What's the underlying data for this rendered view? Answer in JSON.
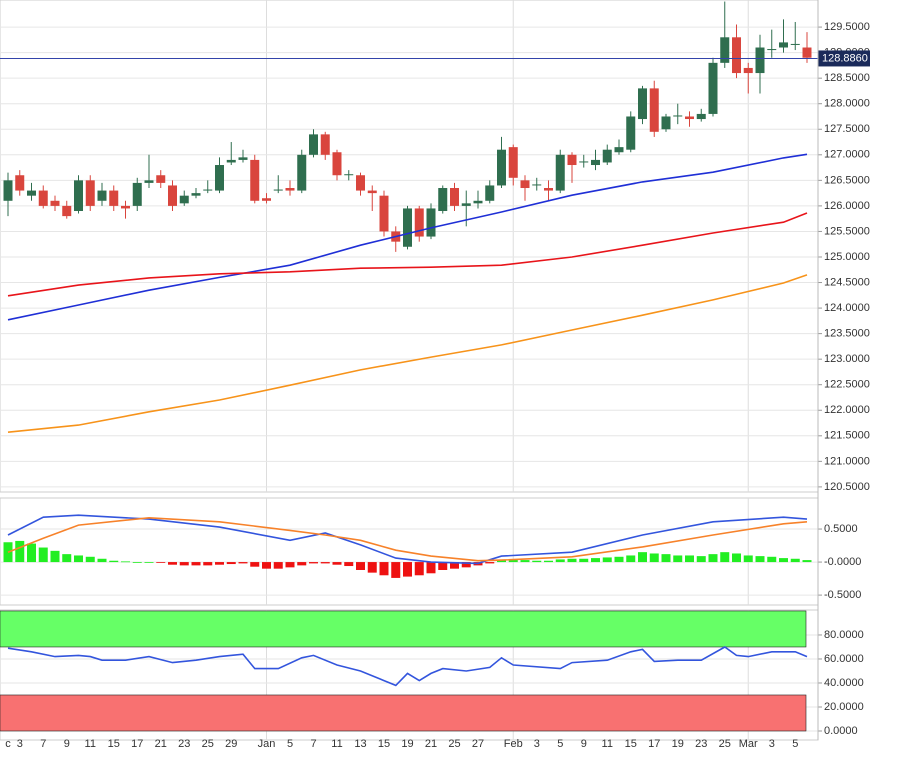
{
  "chart_data": [
    {
      "type": "candlestick",
      "categories": [
        "c",
        "3",
        null,
        "7",
        null,
        "9",
        null,
        "11",
        null,
        "15",
        null,
        "17",
        null,
        "21",
        null,
        "23",
        null,
        "25",
        null,
        "29",
        null,
        null,
        "Jan",
        null,
        "5",
        null,
        "7",
        null,
        "11",
        null,
        "13",
        null,
        "15",
        null,
        "19",
        null,
        "21",
        null,
        "25",
        null,
        "27",
        null,
        null,
        "Feb",
        null,
        "3",
        null,
        "5",
        null,
        "9",
        null,
        "11",
        null,
        "15",
        null,
        "17",
        null,
        "19",
        null,
        "23",
        null,
        "25",
        null,
        "Mar",
        null,
        "3",
        null,
        "5",
        null
      ],
      "open": [
        126.1,
        126.6,
        126.2,
        126.3,
        126.1,
        126.0,
        125.9,
        126.5,
        126.1,
        126.3,
        126.0,
        126.0,
        126.45,
        126.6,
        126.4,
        126.05,
        126.2,
        126.3,
        126.3,
        126.85,
        126.9,
        126.9,
        126.15,
        126.3,
        126.35,
        126.3,
        127.0,
        127.4,
        127.05,
        126.6,
        126.6,
        126.3,
        126.2,
        125.5,
        125.2,
        125.95,
        125.4,
        125.9,
        126.35,
        126.0,
        126.05,
        126.1,
        126.4,
        127.15,
        126.5,
        126.4,
        126.35,
        126.3,
        127.0,
        126.85,
        126.8,
        126.85,
        127.05,
        127.1,
        127.7,
        128.3,
        127.5,
        127.75,
        127.75,
        127.7,
        127.8,
        128.8,
        129.3,
        128.7,
        128.6,
        129.05,
        129.1,
        129.15,
        129.1
      ],
      "high": [
        126.65,
        126.7,
        126.45,
        126.4,
        126.2,
        126.1,
        126.6,
        126.6,
        126.45,
        126.4,
        126.1,
        126.55,
        127.0,
        126.7,
        126.5,
        126.3,
        126.35,
        126.5,
        126.95,
        127.25,
        127.1,
        127.0,
        126.25,
        126.6,
        126.5,
        127.1,
        127.5,
        127.45,
        127.1,
        126.7,
        126.65,
        126.4,
        126.3,
        125.6,
        126.0,
        126.0,
        126.05,
        126.4,
        126.45,
        126.3,
        126.3,
        126.5,
        127.35,
        127.2,
        126.6,
        126.55,
        126.5,
        127.1,
        127.05,
        127.0,
        127.1,
        127.2,
        127.3,
        127.85,
        128.35,
        128.45,
        127.8,
        128.0,
        127.85,
        127.9,
        128.9,
        130.0,
        129.55,
        128.8,
        129.35,
        129.45,
        129.65,
        129.6,
        129.4
      ],
      "low": [
        125.8,
        126.2,
        126.1,
        125.95,
        125.9,
        125.75,
        125.85,
        125.9,
        126.0,
        125.9,
        125.75,
        125.9,
        126.35,
        126.35,
        125.9,
        126.0,
        126.15,
        126.25,
        126.25,
        126.8,
        126.85,
        126.05,
        126.05,
        126.25,
        126.2,
        126.25,
        126.95,
        126.9,
        126.5,
        126.5,
        126.2,
        125.9,
        125.4,
        125.1,
        125.15,
        125.3,
        125.35,
        125.85,
        125.9,
        125.6,
        125.95,
        126.05,
        126.35,
        126.4,
        126.1,
        126.3,
        126.1,
        126.25,
        126.45,
        126.75,
        126.7,
        126.8,
        127.0,
        127.05,
        127.6,
        127.35,
        127.45,
        127.6,
        127.55,
        127.65,
        127.75,
        128.7,
        128.5,
        128.2,
        128.2,
        128.9,
        129.0,
        129.05,
        128.8
      ],
      "close": [
        126.5,
        126.3,
        126.3,
        126.0,
        126.0,
        125.8,
        126.5,
        126.0,
        126.3,
        126.0,
        125.95,
        126.45,
        126.5,
        126.45,
        126.0,
        126.2,
        126.25,
        126.32,
        126.8,
        126.9,
        126.95,
        126.1,
        126.1,
        126.32,
        126.3,
        127.0,
        127.4,
        127.0,
        126.6,
        126.62,
        126.3,
        126.25,
        125.5,
        125.3,
        125.95,
        125.4,
        125.95,
        126.35,
        126.0,
        126.05,
        126.1,
        126.4,
        127.1,
        126.55,
        126.35,
        126.42,
        126.3,
        127.0,
        126.8,
        126.87,
        126.9,
        127.1,
        127.15,
        127.75,
        128.3,
        127.45,
        127.75,
        127.77,
        127.7,
        127.8,
        128.8,
        129.3,
        128.6,
        128.6,
        129.1,
        129.07,
        129.2,
        129.17,
        128.9
      ],
      "up_color": "#2f6e4f",
      "down_color": "#d9453d",
      "series": [
        {
          "color": "#1f2fd6",
          "x": [
            0,
            6,
            12,
            18,
            24,
            30,
            36,
            42,
            48,
            54,
            60,
            66,
            68
          ],
          "values": [
            123.77,
            124.06,
            124.35,
            124.6,
            124.84,
            125.23,
            125.57,
            125.88,
            126.21,
            126.47,
            126.66,
            126.94,
            127.01
          ]
        },
        {
          "color": "#e8141a",
          "x": [
            0,
            6,
            12,
            18,
            24,
            30,
            36,
            42,
            48,
            54,
            60,
            66,
            68
          ],
          "values": [
            124.24,
            124.45,
            124.59,
            124.67,
            124.71,
            124.78,
            124.8,
            124.84,
            125.0,
            125.23,
            125.47,
            125.68,
            125.86
          ]
        },
        {
          "color": "#f7931a",
          "x": [
            0,
            6,
            12,
            18,
            24,
            30,
            36,
            42,
            48,
            54,
            60,
            66,
            68
          ],
          "values": [
            121.57,
            121.71,
            121.97,
            122.2,
            122.49,
            122.79,
            123.04,
            123.28,
            123.57,
            123.86,
            124.16,
            124.49,
            124.65
          ]
        }
      ],
      "ylim": [
        120.4,
        130.03
      ],
      "yticks": [
        {
          "value": 120.5,
          "label": "120.5000"
        },
        {
          "value": 121,
          "label": "121.0000"
        },
        {
          "value": 121.5,
          "label": "121.5000"
        },
        {
          "value": 122,
          "label": "122.0000"
        },
        {
          "value": 122.5,
          "label": "122.5000"
        },
        {
          "value": 123,
          "label": "123.0000"
        },
        {
          "value": 123.5,
          "label": "123.5000"
        },
        {
          "value": 124,
          "label": "124.0000"
        },
        {
          "value": 124.5,
          "label": "124.5000"
        },
        {
          "value": 125,
          "label": "125.0000"
        },
        {
          "value": 125.5,
          "label": "125.5000"
        },
        {
          "value": 126,
          "label": "126.0000"
        },
        {
          "value": 126.5,
          "label": "126.5000"
        },
        {
          "value": 127,
          "label": "127.0000"
        },
        {
          "value": 127.5,
          "label": "127.5000"
        },
        {
          "value": 128,
          "label": "128.0000"
        },
        {
          "value": 128.5,
          "label": "128.5000"
        },
        {
          "value": 129,
          "label": "129.0000"
        },
        {
          "value": 129.5,
          "label": "129.5000"
        }
      ],
      "last_price": {
        "value": 128.886,
        "label": "128.8860",
        "color": "#3344aa"
      },
      "grid": true
    },
    {
      "type": "bar",
      "values": [
        0.3,
        0.32,
        0.28,
        0.22,
        0.17,
        0.12,
        0.1,
        0.08,
        0.05,
        0.02,
        0.01,
        0.0,
        0.0,
        -0.01,
        -0.04,
        -0.05,
        -0.05,
        -0.05,
        -0.04,
        -0.03,
        -0.02,
        -0.07,
        -0.1,
        -0.1,
        -0.08,
        -0.05,
        -0.02,
        -0.02,
        -0.04,
        -0.06,
        -0.12,
        -0.16,
        -0.2,
        -0.24,
        -0.22,
        -0.2,
        -0.17,
        -0.12,
        -0.1,
        -0.08,
        -0.05,
        -0.02,
        0.03,
        0.04,
        0.03,
        0.02,
        0.02,
        0.04,
        0.05,
        0.05,
        0.06,
        0.07,
        0.08,
        0.1,
        0.15,
        0.13,
        0.12,
        0.1,
        0.1,
        0.09,
        0.12,
        0.15,
        0.13,
        0.1,
        0.09,
        0.08,
        0.06,
        0.05,
        0.03
      ],
      "positive_color": "#22ee22",
      "negative_color": "#ee1111",
      "series": [
        {
          "color": "#3355dd",
          "x": [
            0,
            3,
            6,
            12,
            18,
            24,
            27,
            30,
            33,
            36,
            40,
            42,
            48,
            54,
            60,
            66,
            68
          ],
          "values": [
            0.41,
            0.68,
            0.71,
            0.65,
            0.53,
            0.33,
            0.44,
            0.26,
            0.06,
            0,
            -0.02,
            0.09,
            0.15,
            0.41,
            0.61,
            0.68,
            0.65
          ]
        },
        {
          "color": "#f7822a",
          "x": [
            0,
            3,
            6,
            12,
            18,
            24,
            27,
            30,
            33,
            36,
            40,
            42,
            48,
            54,
            60,
            66,
            68
          ],
          "values": [
            0.15,
            0.36,
            0.56,
            0.67,
            0.61,
            0.48,
            0.41,
            0.33,
            0.18,
            0.09,
            0.02,
            0.03,
            0.08,
            0.23,
            0.41,
            0.58,
            0.61
          ]
        }
      ],
      "ylim": [
        -0.65,
        0.97
      ],
      "yticks": [
        {
          "value": 0.5,
          "label": "0.5000"
        },
        {
          "value": 0,
          "label": "-0.0000"
        },
        {
          "value": -0.5,
          "label": "-0.5000"
        }
      ],
      "grid": true
    },
    {
      "type": "line",
      "zones": [
        {
          "from": 70,
          "to": 100,
          "color": "#66ff66"
        },
        {
          "from": 0,
          "to": 30,
          "color": "#f87171"
        }
      ],
      "series": [
        {
          "color": "#3355dd",
          "x": [
            0,
            2,
            4,
            6,
            7,
            8,
            10,
            12,
            14,
            16,
            18,
            20,
            21,
            23,
            25,
            26,
            28,
            30,
            32,
            33,
            34,
            35,
            36,
            37,
            39,
            41,
            42,
            43,
            47,
            48,
            51,
            53,
            54,
            55,
            57,
            59,
            61,
            62,
            63,
            65,
            67,
            68
          ],
          "values": [
            69,
            66,
            62,
            63,
            62,
            59,
            59,
            62,
            57,
            59,
            62,
            64,
            52,
            52,
            61,
            63,
            55,
            50,
            42,
            38,
            48,
            42,
            48,
            52,
            50,
            53,
            61,
            55,
            52,
            57,
            59,
            66,
            68,
            58,
            59,
            59,
            70,
            63,
            62,
            66,
            66,
            62
          ]
        }
      ],
      "ylim": [
        -7.5,
        100.8
      ],
      "yticks": [
        {
          "value": 80,
          "label": "80.0000"
        },
        {
          "value": 60,
          "label": "60.0000"
        },
        {
          "value": 40,
          "label": "40.0000"
        },
        {
          "value": 20,
          "label": "20.0000"
        },
        {
          "value": 0,
          "label": "0.0000"
        }
      ],
      "grid": true
    }
  ]
}
